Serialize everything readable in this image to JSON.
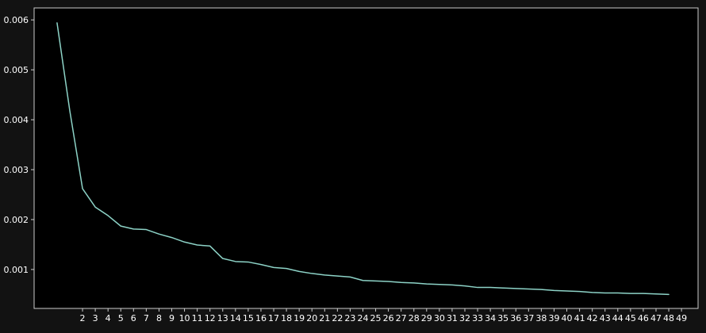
{
  "chart_data": {
    "type": "line",
    "title": "",
    "xlabel": "",
    "ylabel": "",
    "xlim": [
      -1.8,
      50.3
    ],
    "ylim": [
      0.00022,
      0.00624
    ],
    "x_ticks": [
      2,
      3,
      4,
      5,
      6,
      7,
      8,
      9,
      10,
      11,
      12,
      13,
      14,
      15,
      16,
      17,
      18,
      19,
      20,
      21,
      22,
      23,
      24,
      25,
      26,
      27,
      28,
      29,
      30,
      31,
      32,
      33,
      34,
      35,
      36,
      37,
      38,
      39,
      40,
      41,
      42,
      43,
      44,
      45,
      46,
      47,
      48,
      49
    ],
    "y_ticks": [
      0.001,
      0.002,
      0.003,
      0.004,
      0.005,
      0.006
    ],
    "y_tick_labels": [
      "0.001",
      "0.002",
      "0.003",
      "0.004",
      "0.005",
      "0.006"
    ],
    "grid": false,
    "legend": "none",
    "colors": {
      "background": "#000000",
      "figure": "#121212",
      "line": "#8dd3c7",
      "axes": "#cccccc",
      "text": "#ffffff"
    },
    "series": [
      {
        "x": [
          0,
          1,
          2,
          3,
          4,
          5,
          6,
          7,
          8,
          9,
          10,
          11,
          12,
          13,
          14,
          15,
          16,
          17,
          18,
          19,
          20,
          21,
          22,
          23,
          24,
          25,
          26,
          27,
          28,
          29,
          30,
          31,
          32,
          33,
          34,
          35,
          36,
          37,
          38,
          39,
          40,
          41,
          42,
          43,
          44,
          45,
          46,
          47,
          48
        ],
        "values": [
          0.00594,
          0.00418,
          0.00262,
          0.00225,
          0.00208,
          0.00187,
          0.00181,
          0.0018,
          0.00171,
          0.00164,
          0.00155,
          0.00149,
          0.00147,
          0.00122,
          0.00116,
          0.00115,
          0.0011,
          0.00104,
          0.00102,
          0.00096,
          0.00092,
          0.00089,
          0.00087,
          0.00085,
          0.00078,
          0.00077,
          0.00076,
          0.00074,
          0.00073,
          0.00071,
          0.0007,
          0.00069,
          0.00067,
          0.00064,
          0.00064,
          0.00063,
          0.00062,
          0.00061,
          0.0006,
          0.00058,
          0.00057,
          0.00056,
          0.00054,
          0.00053,
          0.00053,
          0.00052,
          0.00052,
          0.00051,
          0.0005
        ]
      }
    ]
  }
}
